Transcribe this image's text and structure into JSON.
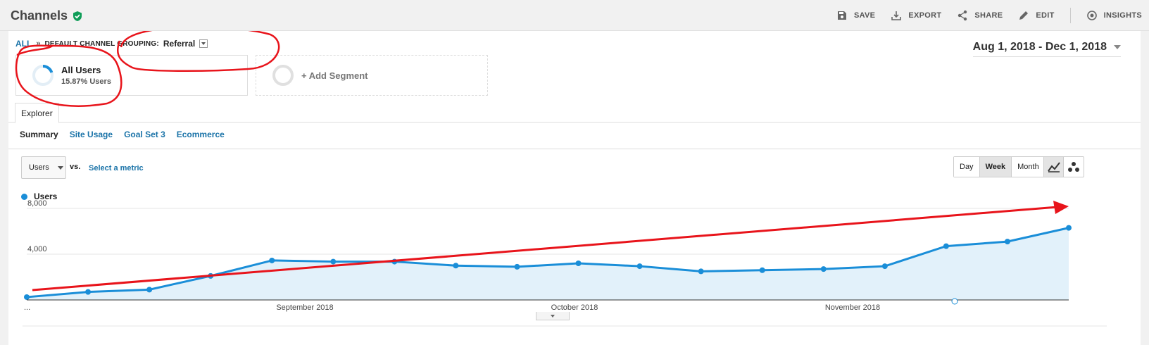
{
  "header": {
    "title": "Channels",
    "toolbar": [
      {
        "label": "SAVE",
        "icon": "save-icon"
      },
      {
        "label": "EXPORT",
        "icon": "export-icon"
      },
      {
        "label": "SHARE",
        "icon": "share-icon"
      },
      {
        "label": "EDIT",
        "icon": "edit-icon"
      },
      {
        "label": "INSIGHTS",
        "icon": "insights-icon"
      }
    ]
  },
  "breadcrumb": {
    "all": "ALL",
    "separator": "»",
    "grouping": "DEFAULT CHANNEL GROUPING:",
    "value": "Referral"
  },
  "date_range": "Aug 1, 2018 - Dec 1, 2018",
  "segments": {
    "primary_name": "All Users",
    "primary_sub": "15.87% Users",
    "add_label": "+ Add Segment"
  },
  "tabs": {
    "explorer": "Explorer"
  },
  "subtabs": [
    "Summary",
    "Site Usage",
    "Goal Set 3",
    "Ecommerce"
  ],
  "metric_selector": {
    "value": "Users",
    "vs": "vs.",
    "select": "Select a metric"
  },
  "periods": [
    "Day",
    "Week",
    "Month"
  ],
  "active_period": "Week",
  "colors": {
    "series": "#1a8ed8",
    "area": "#e2f1fa",
    "annotation": "#e8141b",
    "link": "#1a73a8"
  },
  "chart_data": {
    "type": "area",
    "series": [
      {
        "name": "Users",
        "values": [
          250,
          700,
          900,
          2100,
          3450,
          3350,
          3350,
          3000,
          2900,
          3200,
          2950,
          2500,
          2600,
          2700,
          2950,
          4700,
          5100,
          6300
        ]
      }
    ],
    "x_tick_labels": [
      "...",
      "September 2018",
      "October 2018",
      "November 2018"
    ],
    "y_tick_labels": [
      "8,000",
      "4,000"
    ],
    "ylim": [
      0,
      8000
    ],
    "grid": true,
    "trend_annotation": "red-arrow-upward"
  }
}
